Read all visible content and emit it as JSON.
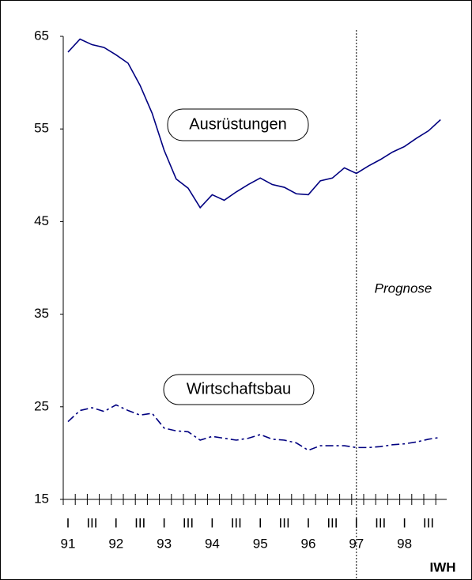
{
  "chart_data": {
    "type": "line",
    "categories": [
      "I",
      null,
      "III",
      null,
      "I",
      null,
      "III",
      null,
      "I",
      null,
      "III",
      null,
      "I",
      null,
      "III",
      null,
      "I",
      null,
      "III",
      null,
      "I",
      null,
      "III",
      null,
      "I",
      null,
      "III",
      null,
      "I",
      null,
      "III",
      null
    ],
    "years": [
      "91",
      "92",
      "93",
      "94",
      "95",
      "96",
      "97",
      "98"
    ],
    "series": [
      {
        "name": "Ausrüstungen",
        "color": "#000080",
        "dash": "solid",
        "values": [
          63.3,
          64.7,
          64.1,
          63.8,
          63.0,
          62.1,
          59.7,
          56.7,
          52.7,
          49.6,
          48.6,
          46.5,
          47.9,
          47.3,
          48.2,
          49.0,
          49.7,
          49.0,
          48.7,
          48.0,
          47.9,
          49.4,
          49.7,
          50.8,
          50.2,
          51.0,
          51.7,
          52.5,
          53.1,
          54.0,
          54.8,
          56.0
        ]
      },
      {
        "name": "Wirtschaftsbau",
        "color": "#000080",
        "dash": "dashdot",
        "values": [
          23.4,
          24.6,
          24.9,
          24.5,
          25.2,
          24.6,
          24.1,
          24.3,
          22.7,
          22.4,
          22.3,
          21.4,
          21.8,
          21.6,
          21.4,
          21.6,
          22.0,
          21.5,
          21.4,
          21.1,
          20.3,
          20.8,
          20.8,
          20.8,
          20.6,
          20.6,
          20.7,
          20.9,
          21.0,
          21.2,
          21.5,
          21.7
        ]
      }
    ],
    "ylim": [
      15,
      65
    ],
    "yticks": [
      15,
      25,
      35,
      45,
      55,
      65
    ],
    "grid": false,
    "forecast_start_index": 24,
    "forecast_label": "Prognose",
    "source": "IWH"
  }
}
